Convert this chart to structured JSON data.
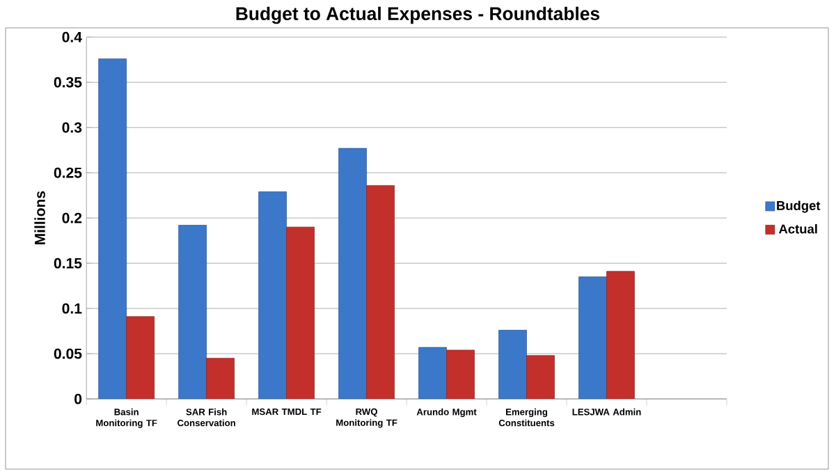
{
  "chart_data": {
    "type": "bar",
    "title": "Budget to Actual Expenses - Roundtables",
    "ylabel": "Millions",
    "categories": [
      "Basin Monitoring TF",
      "SAR Fish Conservation",
      "MSAR TMDL TF",
      "RWQ Monitoring TF",
      "Arundo Mgmt",
      "Emerging Constituents",
      "LESJWA Admin",
      null
    ],
    "series": [
      {
        "name": "Budget",
        "color": "#3b78c9",
        "values": [
          0.376,
          0.192,
          0.229,
          0.277,
          0.057,
          0.076,
          0.135,
          null
        ]
      },
      {
        "name": "Actual",
        "color": "#c3302c",
        "values": [
          0.091,
          0.045,
          0.19,
          0.236,
          0.054,
          0.048,
          0.141,
          null
        ]
      }
    ],
    "ylim": [
      0,
      0.4
    ],
    "yticks": [
      0,
      0.05,
      0.1,
      0.15,
      0.2,
      0.25,
      0.3,
      0.35,
      0.4
    ],
    "grid": "y",
    "legend": "right"
  }
}
